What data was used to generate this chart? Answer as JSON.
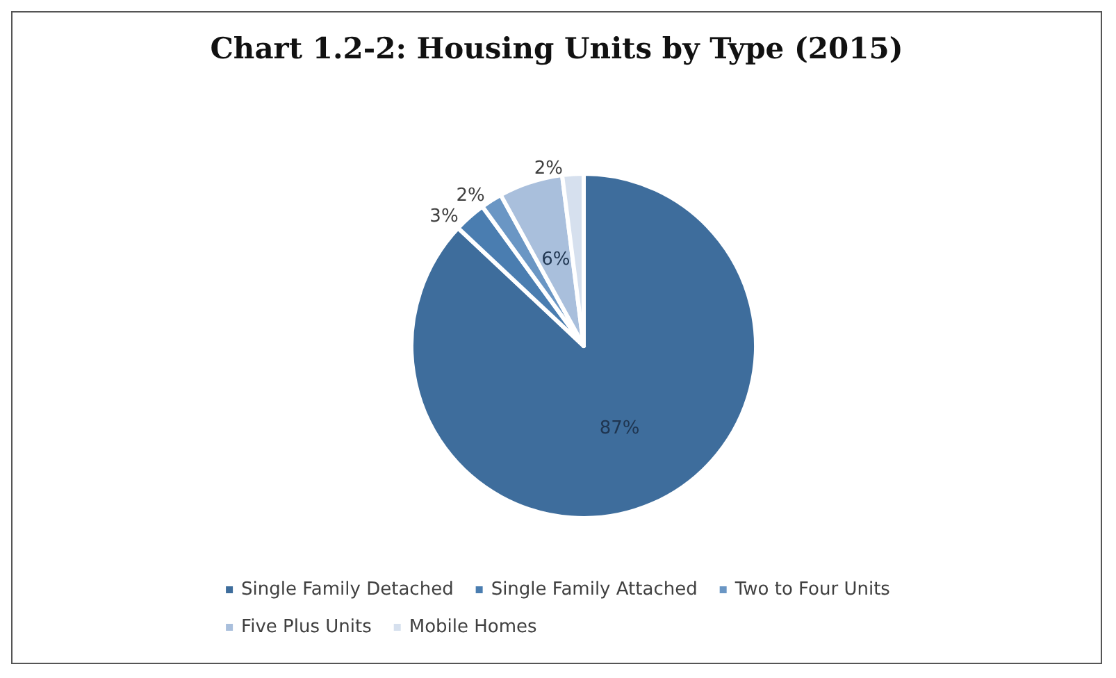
{
  "chart_data": {
    "type": "pie",
    "title": "Chart 1.2-2: Housing Units by Type (2015)",
    "categories": [
      "Single Family Detached",
      "Single Family Attached",
      "Two to Four Units",
      "Five Plus Units",
      "Mobile Homes"
    ],
    "values": [
      87,
      3,
      2,
      6,
      2
    ],
    "colors": [
      "#3e6d9c",
      "#4a7db0",
      "#6a96c4",
      "#a9bfdc",
      "#d6e0ee"
    ],
    "value_labels": [
      "87%",
      "3%",
      "2%",
      "6%",
      "2%"
    ],
    "legend": "bottom"
  }
}
